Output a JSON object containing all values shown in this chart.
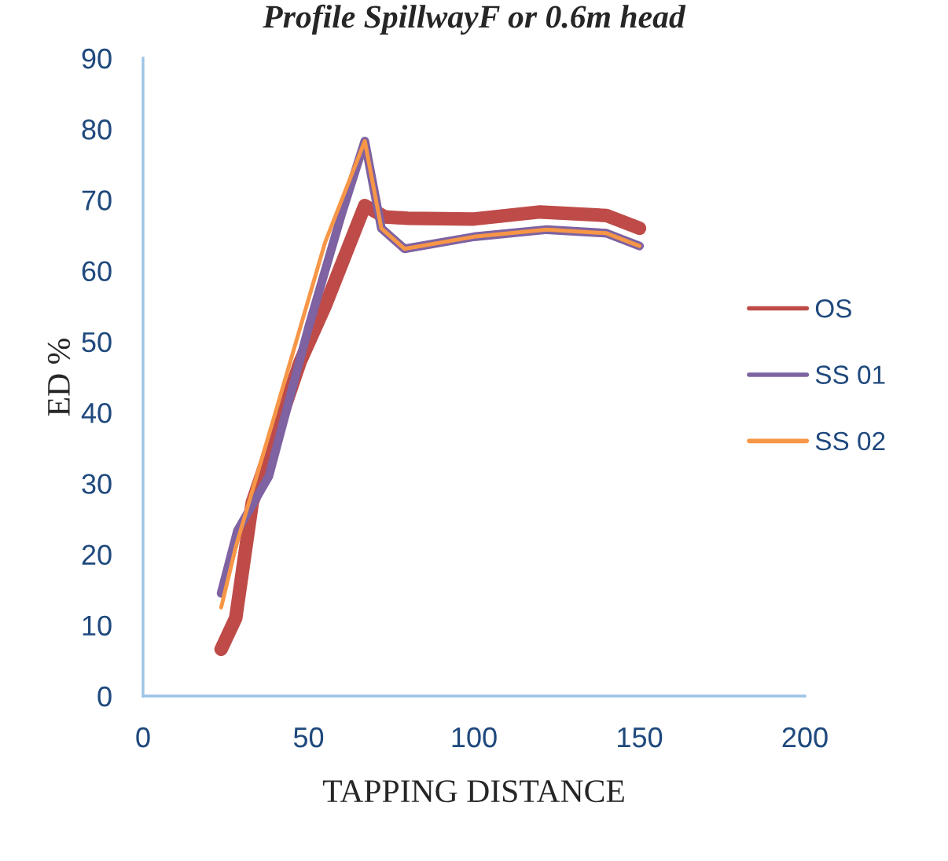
{
  "chart_data": {
    "type": "line",
    "title": "Profile SpillwayF or 0.6m head",
    "xlabel": "TAPPING DISTANCE",
    "ylabel": "ED %",
    "xlim": [
      0,
      200
    ],
    "xticks": [
      0,
      50,
      100,
      150,
      200
    ],
    "ylim": [
      0,
      90
    ],
    "yticks": [
      0,
      10,
      20,
      30,
      40,
      50,
      60,
      70,
      80,
      90
    ],
    "grid": false,
    "legend": "right",
    "marker": "none",
    "line_style": "solid",
    "series": [
      {
        "name": "OS",
        "color": "#be4b48",
        "x": [
          23.6,
          28,
          33,
          47.5,
          55,
          67,
          73,
          80,
          100,
          120,
          140,
          150
        ],
        "values": [
          6.6,
          11,
          27.3,
          47.2,
          55,
          69.2,
          67.6,
          67.4,
          67.3,
          68.3,
          67.8,
          66
        ]
      },
      {
        "name": "SS 01",
        "color": "#7e62a1",
        "x": [
          23.6,
          28.5,
          38,
          50,
          60,
          67,
          72,
          79,
          100,
          122,
          140,
          150
        ],
        "values": [
          14.5,
          23.3,
          31,
          52,
          68,
          78.3,
          66,
          63.1,
          64.8,
          65.8,
          65.3,
          63.5
        ]
      },
      {
        "name": "SS 02",
        "color": "#f79646",
        "x": [
          23.6,
          28,
          40,
          55,
          67,
          72,
          79,
          100,
          122,
          140,
          150
        ],
        "values": [
          12.5,
          21,
          40,
          64,
          78.3,
          66,
          63.1,
          64.8,
          65.8,
          65.3,
          63.5
        ]
      }
    ]
  }
}
